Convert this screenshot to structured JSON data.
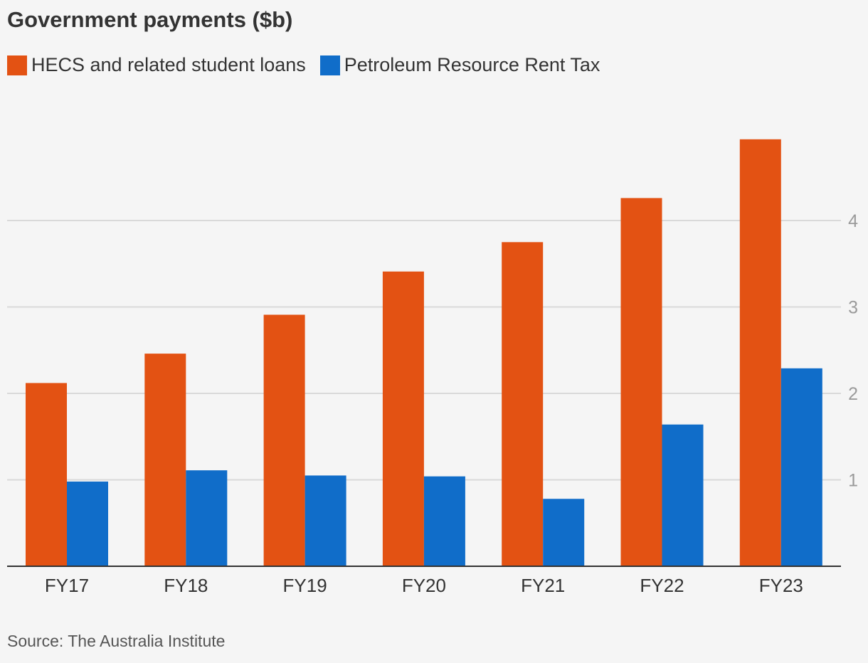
{
  "chart_data": {
    "type": "bar",
    "title": "Government payments ($b)",
    "categories": [
      "FY17",
      "FY18",
      "FY19",
      "FY20",
      "FY21",
      "FY22",
      "FY23"
    ],
    "series": [
      {
        "name": "HECS and related student loans",
        "color": "#e35213",
        "values": [
          2.12,
          2.46,
          2.91,
          3.41,
          3.75,
          4.26,
          4.94
        ]
      },
      {
        "name": "Petroleum Resource Rent Tax",
        "color": "#106dc9",
        "values": [
          0.98,
          1.11,
          1.05,
          1.04,
          0.78,
          1.64,
          2.29
        ]
      }
    ],
    "yticks": [
      1,
      2,
      3,
      4
    ],
    "ylim": [
      0,
      5.2
    ],
    "ylabel": "",
    "xlabel": "",
    "grid": true,
    "legend": "top-left"
  },
  "source": "Source: The Australia Institute"
}
